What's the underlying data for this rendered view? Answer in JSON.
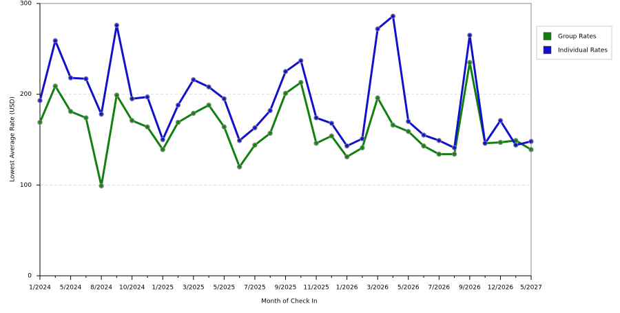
{
  "chart_data": {
    "type": "line",
    "x_label": "Month of Check In",
    "y_label": "Lowest Average Rate (USD)",
    "categories": [
      "1/2024",
      null,
      "5/2024",
      null,
      "8/2024",
      null,
      "10/2024",
      null,
      "1/2025",
      null,
      "3/2025",
      null,
      "5/2025",
      null,
      "7/2025",
      null,
      "9/2025",
      null,
      "11/2025",
      null,
      "1/2026",
      null,
      "3/2026",
      null,
      "5/2026",
      null,
      "7/2026",
      null,
      "9/2026",
      null,
      "12/2026",
      null,
      "5/2027"
    ],
    "series": [
      {
        "name": "Group Rates",
        "color": "#118011",
        "values": [
          169,
          209,
          181,
          174,
          99,
          199,
          171,
          164,
          139,
          169,
          179,
          188,
          164,
          120,
          144,
          157,
          201,
          213,
          146,
          154,
          131,
          141,
          196,
          166,
          159,
          143,
          134,
          134,
          235,
          146,
          147,
          149,
          139
        ]
      },
      {
        "name": "Individual Rates",
        "color": "#1111cc",
        "values": [
          193,
          259,
          218,
          217,
          178,
          276,
          195,
          197,
          150,
          188,
          216,
          208,
          195,
          149,
          163,
          182,
          225,
          237,
          174,
          168,
          143,
          151,
          272,
          286,
          170,
          155,
          149,
          141,
          265,
          146,
          171,
          144,
          148
        ]
      }
    ],
    "ylim": [
      0,
      300
    ],
    "yticks": [
      0,
      100,
      200,
      300
    ],
    "grid": true,
    "legend": "right"
  }
}
